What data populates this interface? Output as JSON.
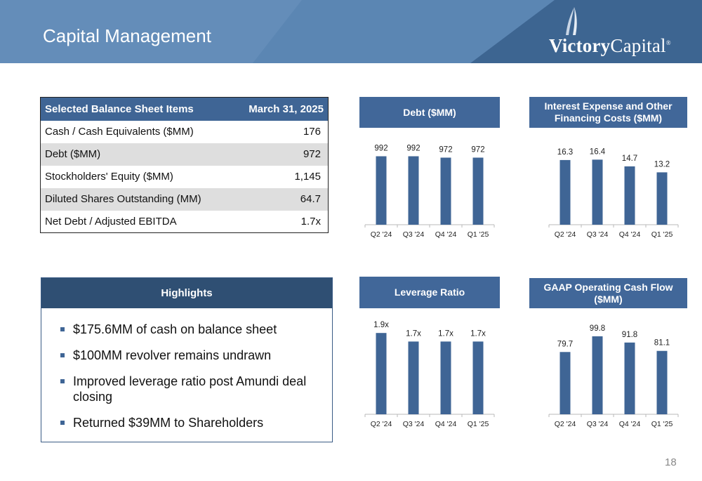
{
  "header": {
    "title": "Capital Management",
    "logo_text_bold": "Victory",
    "logo_text_light": "Capital",
    "logo_reg": "®"
  },
  "table": {
    "headers": [
      "Selected Balance Sheet Items",
      "March 31, 2025"
    ],
    "rows": [
      [
        "Cash / Cash Equivalents ($MM)",
        "176"
      ],
      [
        "Debt ($MM)",
        "972"
      ],
      [
        "Stockholders' Equity ($MM)",
        "1,145"
      ],
      [
        "Diluted Shares Outstanding (MM)",
        "64.7"
      ],
      [
        "Net Debt / Adjusted EBITDA",
        "1.7x"
      ]
    ]
  },
  "highlights": {
    "title": "Highlights",
    "items": [
      "$175.6MM of cash on balance sheet",
      "$100MM revolver remains undrawn",
      "Improved leverage ratio post Amundi deal closing",
      "Returned $39MM to Shareholders"
    ]
  },
  "chart_data": [
    {
      "type": "bar",
      "title": "Debt ($MM)",
      "categories": [
        "Q2 '24",
        "Q3 '24",
        "Q4 '24",
        "Q1 '25"
      ],
      "values": [
        992,
        992,
        972,
        972
      ],
      "labels": [
        "992",
        "992",
        "972",
        "972"
      ],
      "ylim": [
        0,
        1150
      ]
    },
    {
      "type": "bar",
      "title": "Interest Expense and Other Financing Costs ($MM)",
      "categories": [
        "Q2 '24",
        "Q3 '24",
        "Q4 '24",
        "Q1 '25"
      ],
      "values": [
        16.3,
        16.4,
        14.7,
        13.2
      ],
      "labels": [
        "16.3",
        "16.4",
        "14.7",
        "13.2"
      ],
      "ylim": [
        0,
        20
      ]
    },
    {
      "type": "bar",
      "title": "Leverage Ratio",
      "categories": [
        "Q2 '24",
        "Q3 '24",
        "Q4 '24",
        "Q1 '25"
      ],
      "values": [
        1.9,
        1.7,
        1.7,
        1.7
      ],
      "labels": [
        "1.9x",
        "1.7x",
        "1.7x",
        "1.7x"
      ],
      "ylim": [
        0,
        2.1
      ]
    },
    {
      "type": "bar",
      "title": "GAAP Operating Cash Flow ($MM)",
      "categories": [
        "Q2 '24",
        "Q3 '24",
        "Q4 '24",
        "Q1 '25"
      ],
      "values": [
        79.7,
        99.8,
        91.8,
        81.1
      ],
      "labels": [
        "79.7",
        "99.8",
        "91.8",
        "81.1"
      ],
      "ylim": [
        0,
        115
      ]
    }
  ],
  "footer": {
    "page_number": "18"
  },
  "colors": {
    "bar": "#3f6595",
    "header": "#5b86b3",
    "title_bg": "#416799"
  }
}
